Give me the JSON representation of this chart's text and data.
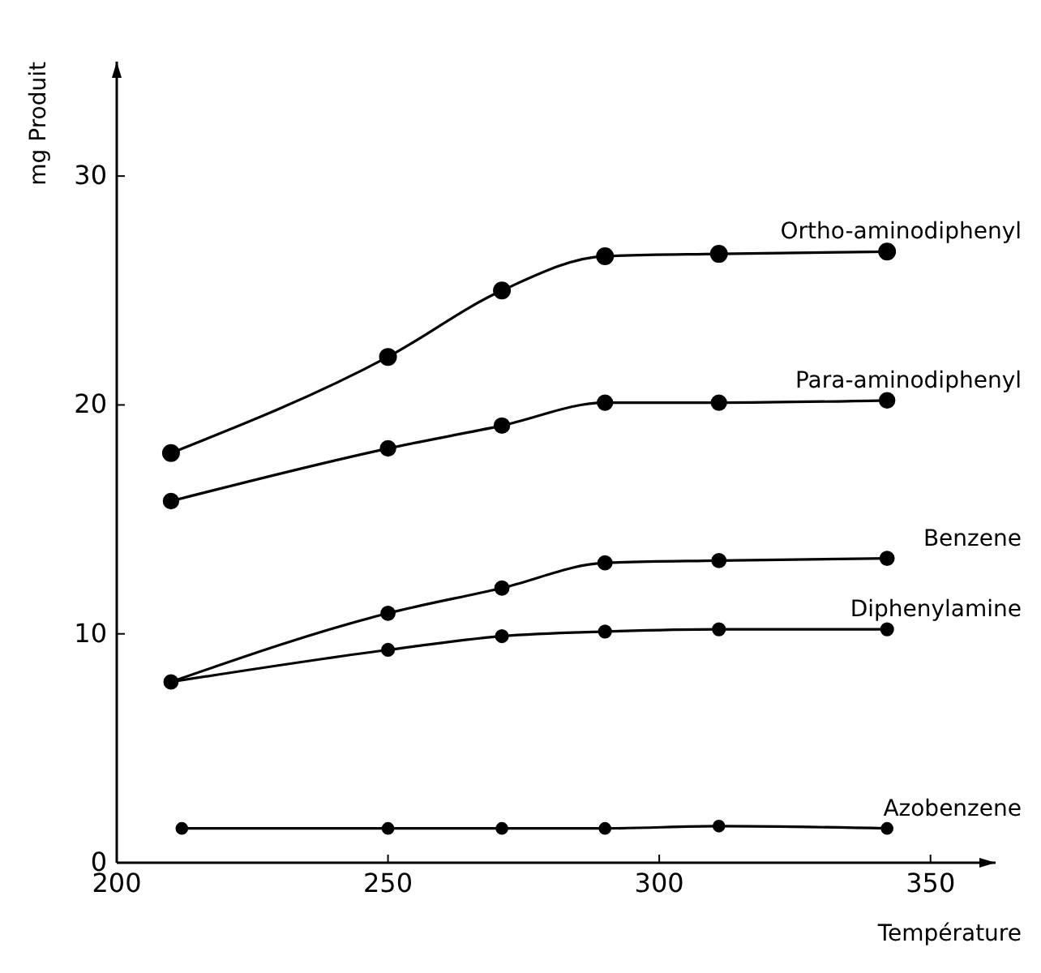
{
  "chart_data": {
    "type": "line",
    "xlabel": "Température",
    "ylabel": "mg Produit",
    "xlim": [
      200,
      362
    ],
    "ylim": [
      0,
      35
    ],
    "xticks": [
      200,
      250,
      300,
      350
    ],
    "yticks": [
      0,
      10,
      20,
      30
    ],
    "grid": false,
    "legend": false,
    "marker": "circle",
    "line_style": "solid",
    "series": [
      {
        "name": "Ortho-aminodiphenyl",
        "color": "#000000",
        "x": [
          210,
          250,
          271,
          290,
          311,
          342
        ],
        "values": [
          17.9,
          22.1,
          25.0,
          26.5,
          26.6,
          26.7
        ]
      },
      {
        "name": "Para-aminodiphenyl",
        "color": "#000000",
        "x": [
          210,
          250,
          271,
          290,
          311,
          342
        ],
        "values": [
          15.8,
          18.1,
          19.1,
          20.1,
          20.1,
          20.2
        ]
      },
      {
        "name": "Benzene",
        "color": "#000000",
        "x": [
          210,
          250,
          271,
          290,
          311,
          342
        ],
        "values": [
          7.9,
          10.9,
          12.0,
          13.1,
          13.2,
          13.3
        ]
      },
      {
        "name": "Diphenylamine",
        "color": "#000000",
        "x": [
          210,
          250,
          271,
          290,
          311,
          342
        ],
        "values": [
          7.9,
          9.3,
          9.9,
          10.1,
          10.2,
          10.2
        ]
      },
      {
        "name": "Azobenzene",
        "color": "#000000",
        "x": [
          212,
          250,
          271,
          290,
          311,
          342
        ],
        "values": [
          1.5,
          1.5,
          1.5,
          1.5,
          1.6,
          1.5
        ]
      }
    ]
  }
}
